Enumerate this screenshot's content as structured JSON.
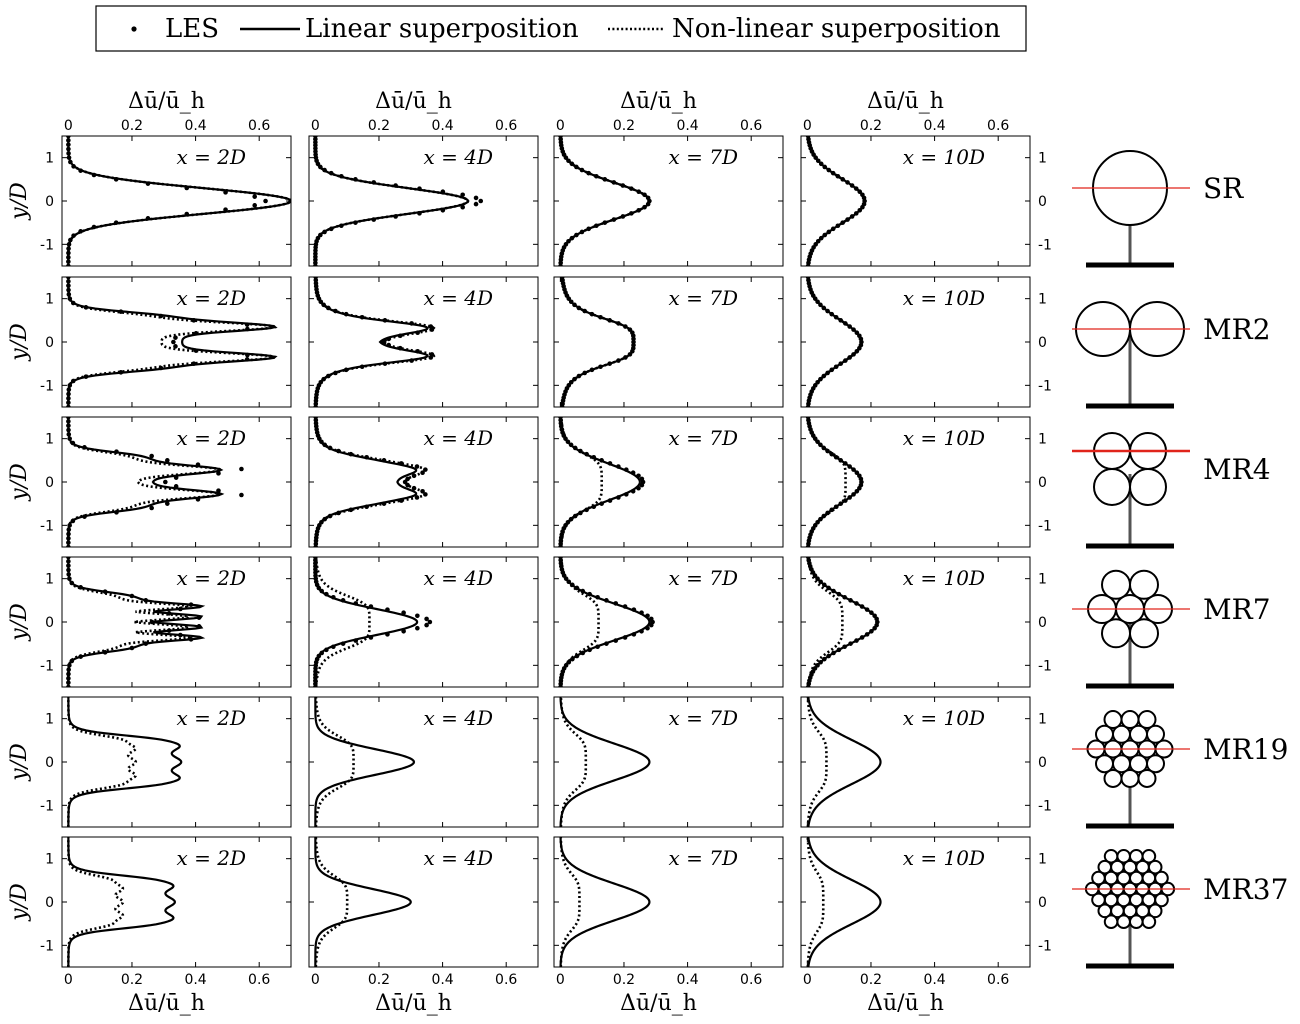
{
  "legend": {
    "les": "LES",
    "linear": "Linear superposition",
    "nonlinear": "Non-linear superposition"
  },
  "xlabel": "Δū/ū_h",
  "ylabel": "y/D",
  "xticks": [
    "0",
    "0.2",
    "0.4",
    "0.6"
  ],
  "yticks": [
    "1",
    "0",
    "-1"
  ],
  "chart_data": {
    "type": "line",
    "xlabel": "Δū/ū_h",
    "ylabel": "y/D",
    "xlim": [
      -0.02,
      0.7
    ],
    "ylim": [
      -1.5,
      1.5
    ],
    "columns": [
      "x = 2D",
      "x = 4D",
      "x = 7D",
      "x = 10D"
    ],
    "rotors": [
      "SR",
      "MR2",
      "MR4",
      "MR7",
      "MR19",
      "MR37"
    ],
    "series": [
      {
        "name": "LES",
        "style": "dots"
      },
      {
        "name": "Linear superposition",
        "style": "solid"
      },
      {
        "name": "Non-linear superposition",
        "style": "dotted"
      }
    ],
    "panels": [
      {
        "rotor": "SR",
        "x": "x = 2D",
        "linear_peak": 0.7,
        "nonlinear_peak": 0.7,
        "les_peak": 0.62
      },
      {
        "rotor": "SR",
        "x": "x = 4D",
        "linear_peak": 0.48,
        "nonlinear_peak": 0.48,
        "les_peak": 0.52
      },
      {
        "rotor": "SR",
        "x": "x = 7D",
        "linear_peak": 0.28,
        "nonlinear_peak": 0.28,
        "les_peak": 0.28
      },
      {
        "rotor": "SR",
        "x": "x = 10D",
        "linear_peak": 0.18,
        "nonlinear_peak": 0.18,
        "les_peak": 0.18
      },
      {
        "rotor": "MR2",
        "x": "x = 2D",
        "linear_peak": 0.65,
        "nonlinear_peak": 0.65,
        "les_peak": 0.6
      },
      {
        "rotor": "MR2",
        "x": "x = 4D",
        "linear_peak": 0.36,
        "nonlinear_peak": 0.38,
        "les_peak": 0.38
      },
      {
        "rotor": "MR2",
        "x": "x = 7D",
        "linear_peak": 0.23,
        "nonlinear_peak": 0.23,
        "les_peak": 0.23
      },
      {
        "rotor": "MR2",
        "x": "x = 10D",
        "linear_peak": 0.17,
        "nonlinear_peak": 0.17,
        "les_peak": 0.17
      },
      {
        "rotor": "MR4",
        "x": "x = 2D",
        "linear_peak": 0.48,
        "nonlinear_peak": 0.48,
        "les_peak": 0.55
      },
      {
        "rotor": "MR4",
        "x": "x = 4D",
        "linear_peak": 0.32,
        "nonlinear_peak": 0.35,
        "les_peak": 0.35
      },
      {
        "rotor": "MR4",
        "x": "x = 7D",
        "linear_peak": 0.25,
        "nonlinear_peak": 0.13,
        "les_peak": 0.26
      },
      {
        "rotor": "MR4",
        "x": "x = 10D",
        "linear_peak": 0.17,
        "nonlinear_peak": 0.12,
        "les_peak": 0.17
      },
      {
        "rotor": "MR7",
        "x": "x = 2D",
        "linear_peak": 0.42,
        "nonlinear_peak": 0.38,
        "les_peak": 0.42
      },
      {
        "rotor": "MR7",
        "x": "x = 4D",
        "linear_peak": 0.32,
        "nonlinear_peak": 0.17,
        "les_peak": 0.36
      },
      {
        "rotor": "MR7",
        "x": "x = 7D",
        "linear_peak": 0.28,
        "nonlinear_peak": 0.12,
        "les_peak": 0.29
      },
      {
        "rotor": "MR7",
        "x": "x = 10D",
        "linear_peak": 0.22,
        "nonlinear_peak": 0.11,
        "les_peak": 0.22
      },
      {
        "rotor": "MR19",
        "x": "x = 2D",
        "linear_peak": 0.34,
        "nonlinear_peak": 0.2
      },
      {
        "rotor": "MR19",
        "x": "x = 4D",
        "linear_peak": 0.31,
        "nonlinear_peak": 0.12
      },
      {
        "rotor": "MR19",
        "x": "x = 7D",
        "linear_peak": 0.28,
        "nonlinear_peak": 0.08
      },
      {
        "rotor": "MR19",
        "x": "x = 10D",
        "linear_peak": 0.23,
        "nonlinear_peak": 0.06
      },
      {
        "rotor": "MR37",
        "x": "x = 2D",
        "linear_peak": 0.32,
        "nonlinear_peak": 0.16
      },
      {
        "rotor": "MR37",
        "x": "x = 4D",
        "linear_peak": 0.3,
        "nonlinear_peak": 0.1
      },
      {
        "rotor": "MR37",
        "x": "x = 7D",
        "linear_peak": 0.28,
        "nonlinear_peak": 0.06
      },
      {
        "rotor": "MR37",
        "x": "x = 10D",
        "linear_peak": 0.23,
        "nonlinear_peak": 0.05
      }
    ]
  }
}
